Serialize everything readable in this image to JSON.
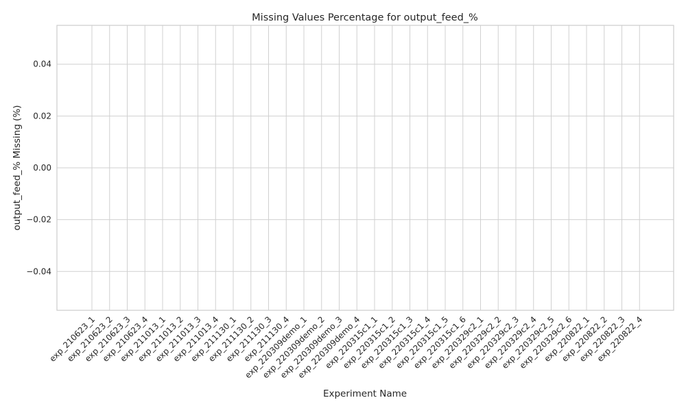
{
  "chart_data": {
    "type": "bar",
    "title": "Missing Values Percentage for output_feed_%",
    "xlabel": "Experiment Name",
    "ylabel": "output_feed_% Missing (%)",
    "ylim": [
      -0.055,
      0.055
    ],
    "yticks": [
      -0.04,
      -0.02,
      0.0,
      0.02,
      0.04
    ],
    "ytick_labels": [
      "−0.04",
      "−0.02",
      "0.00",
      "0.02",
      "0.04"
    ],
    "grid": true,
    "categories": [
      "exp_210623_1",
      "exp_210623_2",
      "exp_210623_3",
      "exp_210623_4",
      "exp_211013_1",
      "exp_211013_2",
      "exp_211013_3",
      "exp_211013_4",
      "exp_211130_1",
      "exp_211130_2",
      "exp_211130_3",
      "exp_211130_4",
      "exp_220309demo_1",
      "exp_220309demo_2",
      "exp_220309demo_3",
      "exp_220309demo_4",
      "exp_220315c1_1",
      "exp_220315c1_2",
      "exp_220315c1_3",
      "exp_220315c1_4",
      "exp_220315c1_5",
      "exp_220315c1_6",
      "exp_220329c2_1",
      "exp_220329c2_2",
      "exp_220329c2_3",
      "exp_220329c2_4",
      "exp_220329c2_5",
      "exp_220329c2_6",
      "exp_220822_1",
      "exp_220822_2",
      "exp_220822_3",
      "exp_220822_4"
    ],
    "values": [
      0,
      0,
      0,
      0,
      0,
      0,
      0,
      0,
      0,
      0,
      0,
      0,
      0,
      0,
      0,
      0,
      0,
      0,
      0,
      0,
      0,
      0,
      0,
      0,
      0,
      0,
      0,
      0,
      0,
      0,
      0,
      0
    ],
    "bar_color": "#4c72b0"
  }
}
